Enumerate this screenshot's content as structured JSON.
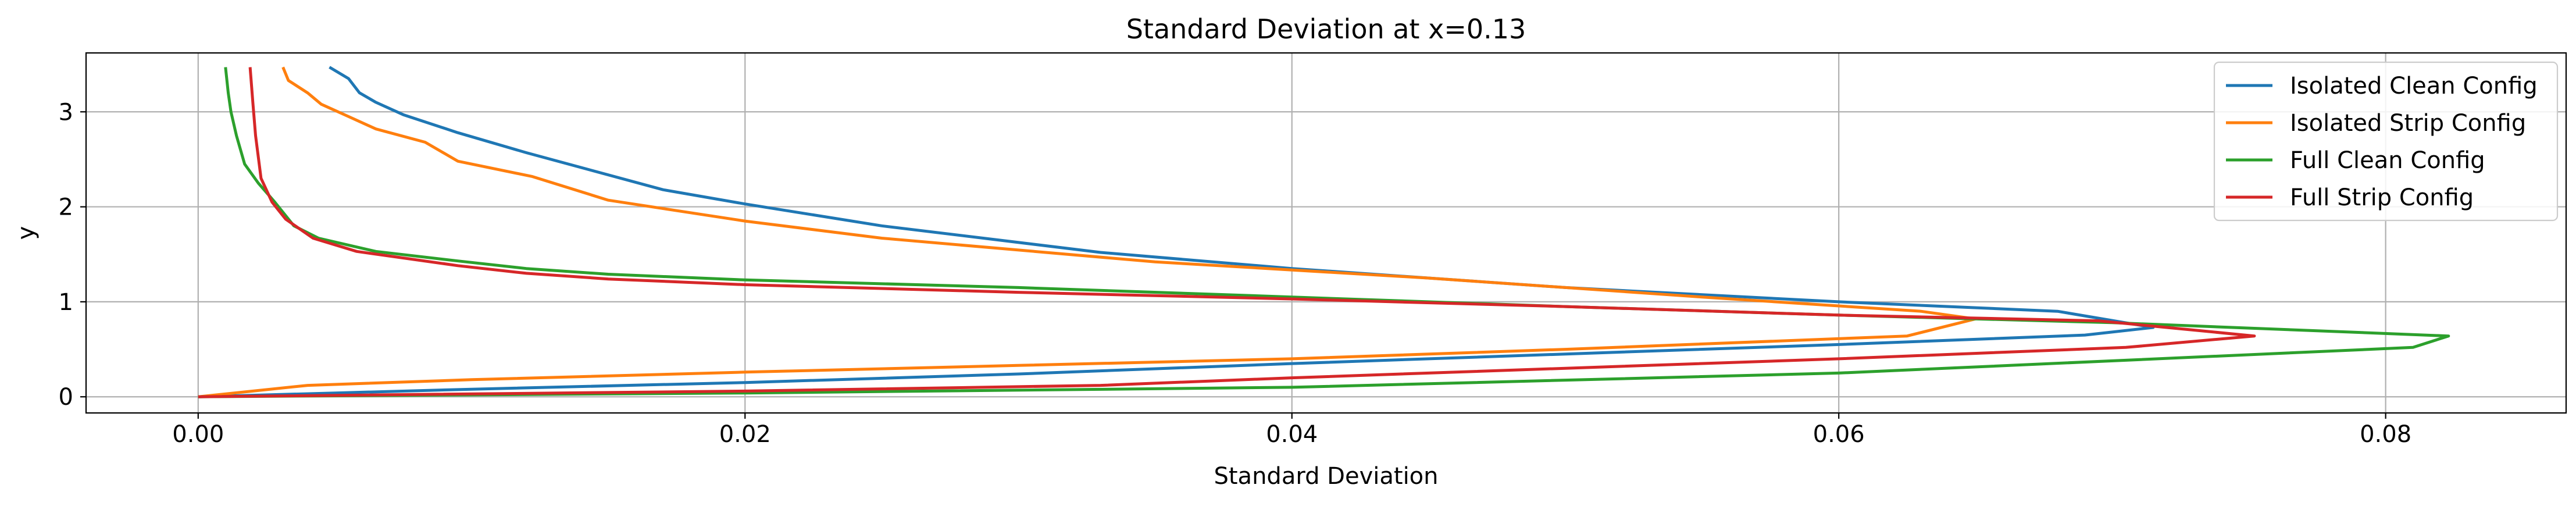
{
  "chart_data": {
    "type": "line",
    "title": "Standard Deviation at x=0.13",
    "xlabel": "Standard Deviation",
    "ylabel": "y",
    "xlim": [
      -0.0041,
      0.0866
    ],
    "ylim": [
      -0.17,
      3.62
    ],
    "xticks": [
      0.0,
      0.02,
      0.04,
      0.06,
      0.08
    ],
    "xtick_labels": [
      "0.00",
      "0.02",
      "0.04",
      "0.06",
      "0.08"
    ],
    "yticks": [
      0,
      1,
      2,
      3
    ],
    "ytick_labels": [
      "0",
      "1",
      "2",
      "3"
    ],
    "grid": true,
    "legend": "top-right",
    "series": [
      {
        "name": "Isolated Clean Config",
        "color": "#1f77b4",
        "x": [
          0.0,
          0.005,
          0.01,
          0.02,
          0.03,
          0.04,
          0.05,
          0.06,
          0.069,
          0.0715,
          0.068,
          0.06,
          0.05,
          0.04,
          0.033,
          0.025,
          0.02,
          0.017,
          0.012,
          0.0095,
          0.0075,
          0.0065,
          0.0059,
          0.0055,
          0.0048
        ],
        "y": [
          0.0,
          0.04,
          0.08,
          0.15,
          0.24,
          0.35,
          0.45,
          0.55,
          0.65,
          0.73,
          0.9,
          1.0,
          1.15,
          1.35,
          1.52,
          1.8,
          2.03,
          2.18,
          2.57,
          2.78,
          2.97,
          3.1,
          3.2,
          3.35,
          3.47
        ]
      },
      {
        "name": "Isolated Strip Config",
        "color": "#ff7f0e",
        "x": [
          0.0,
          0.004,
          0.01,
          0.02,
          0.03,
          0.04,
          0.05,
          0.0625,
          0.065,
          0.063,
          0.055,
          0.045,
          0.035,
          0.025,
          0.02,
          0.015,
          0.0122,
          0.0095,
          0.0083,
          0.0065,
          0.0055,
          0.0045,
          0.004,
          0.0033,
          0.0031
        ],
        "y": [
          0.0,
          0.12,
          0.18,
          0.26,
          0.33,
          0.4,
          0.5,
          0.64,
          0.82,
          0.9,
          1.05,
          1.25,
          1.42,
          1.67,
          1.85,
          2.07,
          2.32,
          2.48,
          2.68,
          2.82,
          2.95,
          3.08,
          3.2,
          3.33,
          3.47
        ]
      },
      {
        "name": "Full Clean Config",
        "color": "#2ca02c",
        "x": [
          0.0,
          0.02,
          0.04,
          0.06,
          0.081,
          0.0823,
          0.07,
          0.06,
          0.05,
          0.04,
          0.03,
          0.02,
          0.015,
          0.012,
          0.0095,
          0.0065,
          0.0044,
          0.0035,
          0.0028,
          0.0022,
          0.0017,
          0.0014,
          0.0012,
          0.0011,
          0.001
        ],
        "y": [
          0.0,
          0.04,
          0.1,
          0.25,
          0.52,
          0.64,
          0.78,
          0.86,
          0.95,
          1.05,
          1.15,
          1.23,
          1.29,
          1.35,
          1.43,
          1.53,
          1.67,
          1.8,
          2.05,
          2.25,
          2.45,
          2.75,
          3.0,
          3.2,
          3.47
        ]
      },
      {
        "name": "Full Strip Config",
        "color": "#d62728",
        "x": [
          0.0,
          0.02,
          0.033,
          0.04,
          0.05,
          0.06,
          0.0705,
          0.0752,
          0.0695,
          0.06,
          0.05,
          0.04,
          0.03,
          0.02,
          0.015,
          0.012,
          0.0095,
          0.0058,
          0.0042,
          0.0032,
          0.0027,
          0.0023,
          0.0021,
          0.002,
          0.0019
        ],
        "y": [
          0.0,
          0.06,
          0.12,
          0.2,
          0.3,
          0.4,
          0.52,
          0.64,
          0.8,
          0.86,
          0.95,
          1.03,
          1.1,
          1.18,
          1.24,
          1.3,
          1.38,
          1.53,
          1.67,
          1.87,
          2.05,
          2.3,
          2.75,
          3.1,
          3.47
        ]
      }
    ]
  }
}
